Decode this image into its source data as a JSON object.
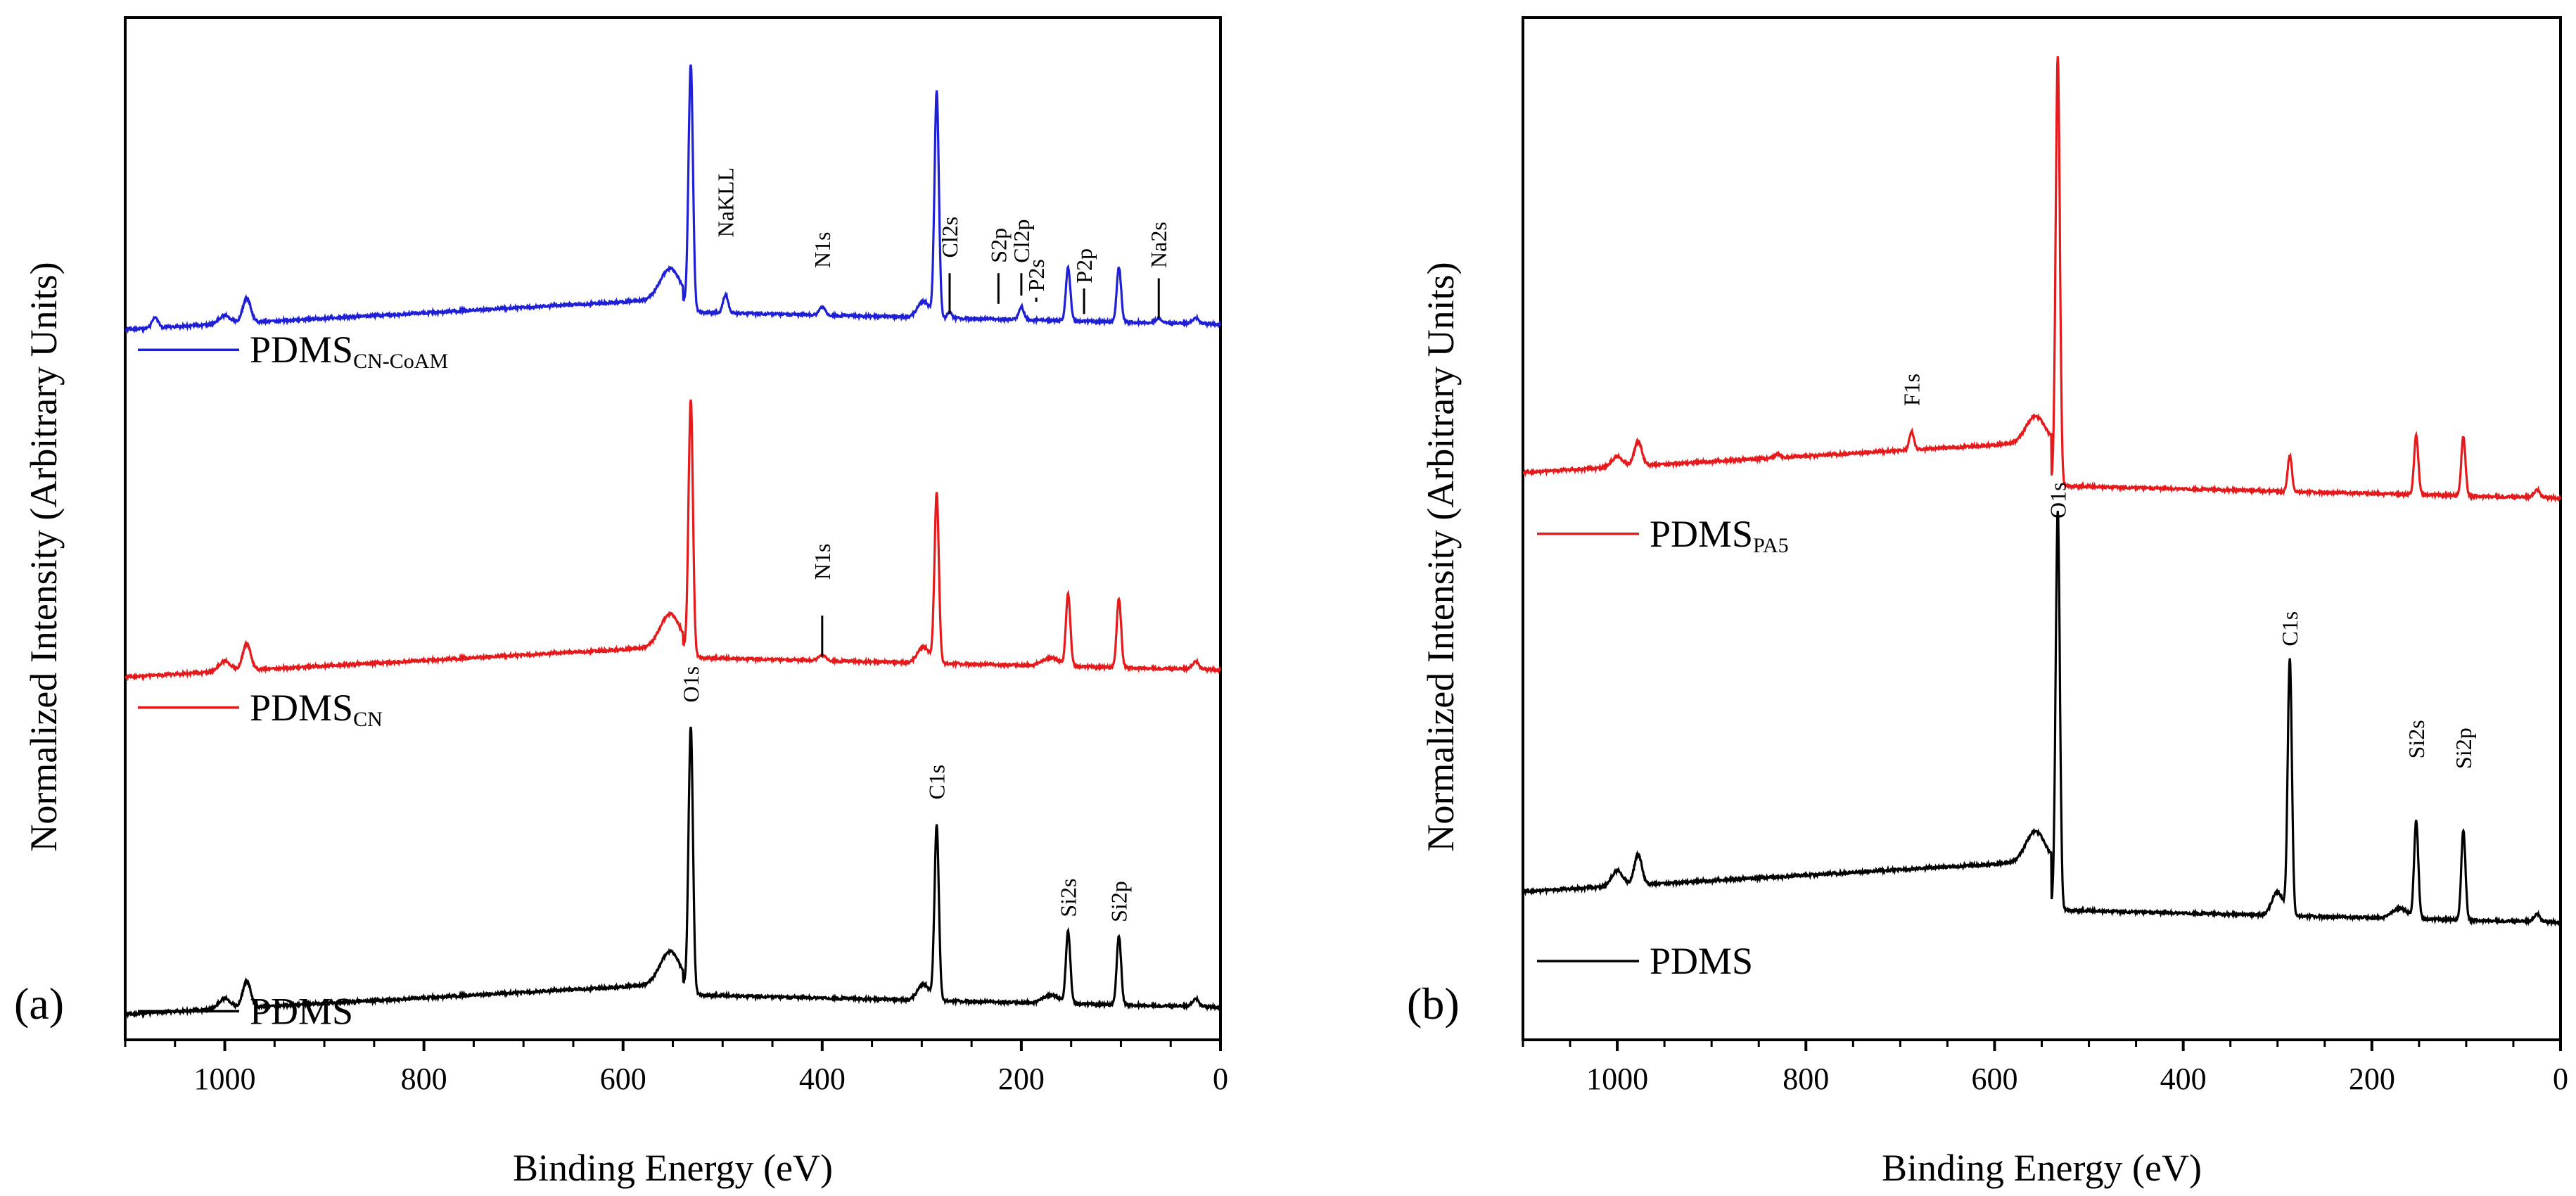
{
  "chart_data": [
    {
      "type": "line",
      "panel_label": "(a)",
      "xlabel": "Binding Energy (eV)",
      "ylabel": "Normalized Intensity (Arbitrary Units)",
      "xlim": [
        1100,
        0
      ],
      "ylim": [
        0,
        100
      ],
      "x_ticks": [
        1000,
        800,
        600,
        400,
        200,
        0
      ],
      "x_tick_labels": [
        "1000",
        "800",
        "600",
        "400",
        "200",
        "0"
      ],
      "series": [
        {
          "name": "PDMS",
          "name_main": "PDMS",
          "name_sub": "",
          "color": "#000000",
          "baseline_high": 5.5,
          "baseline_low": 3.2,
          "slope_end": 540,
          "peaks": [
            {
              "x": 1000,
              "h": 1.0,
              "w": 6
            },
            {
              "x": 978,
              "h": 2.6,
              "w": 4
            },
            {
              "x": 553,
              "h": 3.2,
              "w": 10
            },
            {
              "x": 532,
              "h": 26.0,
              "w": 2.2
            },
            {
              "x": 298,
              "h": 1.6,
              "w": 6
            },
            {
              "x": 285,
              "h": 17.0,
              "w": 2.2
            },
            {
              "x": 170,
              "h": 0.8,
              "w": 8
            },
            {
              "x": 153,
              "h": 7.0,
              "w": 2.2
            },
            {
              "x": 102,
              "h": 6.8,
              "w": 2.2
            },
            {
              "x": 25,
              "h": 0.8,
              "w": 3
            }
          ]
        },
        {
          "name": "PDMS CN",
          "name_main": "PDMS",
          "name_sub": "CN",
          "color": "#e41a1c",
          "baseline_high": 38.5,
          "baseline_low": 36.2,
          "slope_end": 540,
          "peaks": [
            {
              "x": 1000,
              "h": 1.0,
              "w": 6
            },
            {
              "x": 978,
              "h": 2.6,
              "w": 4
            },
            {
              "x": 553,
              "h": 3.2,
              "w": 10
            },
            {
              "x": 532,
              "h": 25.0,
              "w": 2.2
            },
            {
              "x": 400,
              "h": 0.5,
              "w": 4
            },
            {
              "x": 298,
              "h": 1.6,
              "w": 6
            },
            {
              "x": 285,
              "h": 16.5,
              "w": 2.2
            },
            {
              "x": 170,
              "h": 0.8,
              "w": 8
            },
            {
              "x": 153,
              "h": 7.0,
              "w": 2.2
            },
            {
              "x": 102,
              "h": 6.8,
              "w": 2.2
            },
            {
              "x": 25,
              "h": 0.8,
              "w": 3
            }
          ]
        },
        {
          "name": "PDMS CN-CoAM",
          "name_main": "PDMS",
          "name_sub": "CN-CoAM",
          "color": "#1f1fd6",
          "baseline_high": 72.5,
          "baseline_low": 70.0,
          "slope_end": 540,
          "peaks": [
            {
              "x": 1070,
              "h": 1.0,
              "w": 3
            },
            {
              "x": 1000,
              "h": 0.8,
              "w": 6
            },
            {
              "x": 978,
              "h": 2.4,
              "w": 4
            },
            {
              "x": 553,
              "h": 3.0,
              "w": 10
            },
            {
              "x": 532,
              "h": 24.0,
              "w": 2.2
            },
            {
              "x": 497,
              "h": 1.8,
              "w": 2.5
            },
            {
              "x": 400,
              "h": 0.8,
              "w": 3
            },
            {
              "x": 298,
              "h": 1.6,
              "w": 6
            },
            {
              "x": 285,
              "h": 22.0,
              "w": 2.2
            },
            {
              "x": 272,
              "h": 0.7,
              "w": 2
            },
            {
              "x": 200,
              "h": 1.3,
              "w": 2.5
            },
            {
              "x": 153,
              "h": 5.2,
              "w": 2.2
            },
            {
              "x": 102,
              "h": 5.4,
              "w": 2.2
            },
            {
              "x": 62,
              "h": 0.5,
              "w": 3
            },
            {
              "x": 25,
              "h": 0.6,
              "w": 3
            }
          ]
        }
      ],
      "peak_labels": [
        {
          "text": "O1s",
          "x": 532,
          "y": 33.0,
          "tick": false
        },
        {
          "text": "C1s",
          "x": 285,
          "y": 23.5,
          "tick": false
        },
        {
          "text": "Si2s",
          "x": 153,
          "y": 12.0,
          "tick": false
        },
        {
          "text": "Si2p",
          "x": 102,
          "y": 11.5,
          "tick": false
        },
        {
          "text": "N1s",
          "x": 400,
          "y": 45.0,
          "tick": true,
          "tick_from": 37.5,
          "tick_to": 41.5
        },
        {
          "text": "NaKLL",
          "x": 497,
          "y": 78.5,
          "tick": false
        },
        {
          "text": "N1s",
          "x": 400,
          "y": 75.5,
          "tick": false
        },
        {
          "text": "Cl2s",
          "x": 272,
          "y": 76.5,
          "tick": true,
          "tick_from": 71.0,
          "tick_to": 75.0
        },
        {
          "text": "S2p",
          "x": 223,
          "y": 76.0,
          "tick": true,
          "tick_from": 72.0,
          "tick_to": 75.0
        },
        {
          "text": "Cl2p",
          "x": 200,
          "y": 76.0,
          "tick": true,
          "tick_from": 72.8,
          "tick_to": 75.0
        },
        {
          "text": "P2s",
          "x": 185,
          "y": 73.2,
          "tick": true,
          "tick_from": 72.2,
          "tick_to": 72.6
        },
        {
          "text": "P2p",
          "x": 137,
          "y": 74.0,
          "tick": true,
          "tick_from": 71.0,
          "tick_to": 73.5
        },
        {
          "text": "Na2s",
          "x": 62,
          "y": 75.5,
          "tick": true,
          "tick_from": 70.6,
          "tick_to": 74.5
        }
      ],
      "legend": [
        {
          "series": "PDMS CN-CoAM",
          "y": 67.5
        },
        {
          "series": "PDMS CN",
          "y": 32.5
        },
        {
          "series": "PDMS",
          "y": 2.8
        }
      ]
    },
    {
      "type": "line",
      "panel_label": "(b)",
      "xlabel": "Binding Energy (eV)",
      "ylabel": "Normalized Intensity (Arbitrary Units)",
      "xlim": [
        1100,
        0
      ],
      "ylim": [
        0,
        100
      ],
      "x_ticks": [
        1000,
        800,
        600,
        400,
        200,
        0
      ],
      "x_tick_labels": [
        "1000",
        "800",
        "600",
        "400",
        "200",
        "0"
      ],
      "series": [
        {
          "name": "PDMS",
          "name_main": "PDMS",
          "name_sub": "",
          "color": "#000000",
          "baseline_high": 17.5,
          "baseline_low": 11.5,
          "slope_end": 540,
          "peaks": [
            {
              "x": 1000,
              "h": 1.5,
              "w": 6
            },
            {
              "x": 978,
              "h": 3.0,
              "w": 4
            },
            {
              "x": 557,
              "h": 3.0,
              "w": 10
            },
            {
              "x": 533,
              "h": 39.0,
              "w": 2.2
            },
            {
              "x": 300,
              "h": 2.3,
              "w": 6
            },
            {
              "x": 287,
              "h": 25.0,
              "w": 2.2
            },
            {
              "x": 170,
              "h": 1.0,
              "w": 8
            },
            {
              "x": 153,
              "h": 9.5,
              "w": 2.2
            },
            {
              "x": 103,
              "h": 8.8,
              "w": 2.2
            },
            {
              "x": 25,
              "h": 0.8,
              "w": 3
            }
          ]
        },
        {
          "name": "PDMS PA5",
          "name_main": "PDMS",
          "name_sub": "PA5",
          "color": "#e41a1c",
          "baseline_high": 58.5,
          "baseline_low": 53.0,
          "slope_end": 540,
          "peaks": [
            {
              "x": 1000,
              "h": 1.0,
              "w": 6
            },
            {
              "x": 978,
              "h": 2.4,
              "w": 4
            },
            {
              "x": 830,
              "h": 0.4,
              "w": 3
            },
            {
              "x": 688,
              "h": 1.8,
              "w": 2.5
            },
            {
              "x": 557,
              "h": 2.6,
              "w": 10
            },
            {
              "x": 533,
              "h": 42.0,
              "w": 2.2
            },
            {
              "x": 287,
              "h": 3.5,
              "w": 2.2
            },
            {
              "x": 153,
              "h": 5.8,
              "w": 2.2
            },
            {
              "x": 103,
              "h": 5.8,
              "w": 2.2
            },
            {
              "x": 25,
              "h": 0.8,
              "w": 3
            }
          ]
        }
      ],
      "peak_labels": [
        {
          "text": "O1s",
          "x": 533,
          "y": 51.0,
          "tick": false
        },
        {
          "text": "C1s",
          "x": 287,
          "y": 38.5,
          "tick": false
        },
        {
          "text": "Si2s",
          "x": 153,
          "y": 27.5,
          "tick": false
        },
        {
          "text": "Si2p",
          "x": 103,
          "y": 26.5,
          "tick": false
        },
        {
          "text": "F1s",
          "x": 688,
          "y": 62.0,
          "tick": false
        }
      ],
      "legend": [
        {
          "series": "PDMS PA5",
          "y": 49.5
        },
        {
          "series": "PDMS",
          "y": 7.7
        }
      ]
    }
  ]
}
